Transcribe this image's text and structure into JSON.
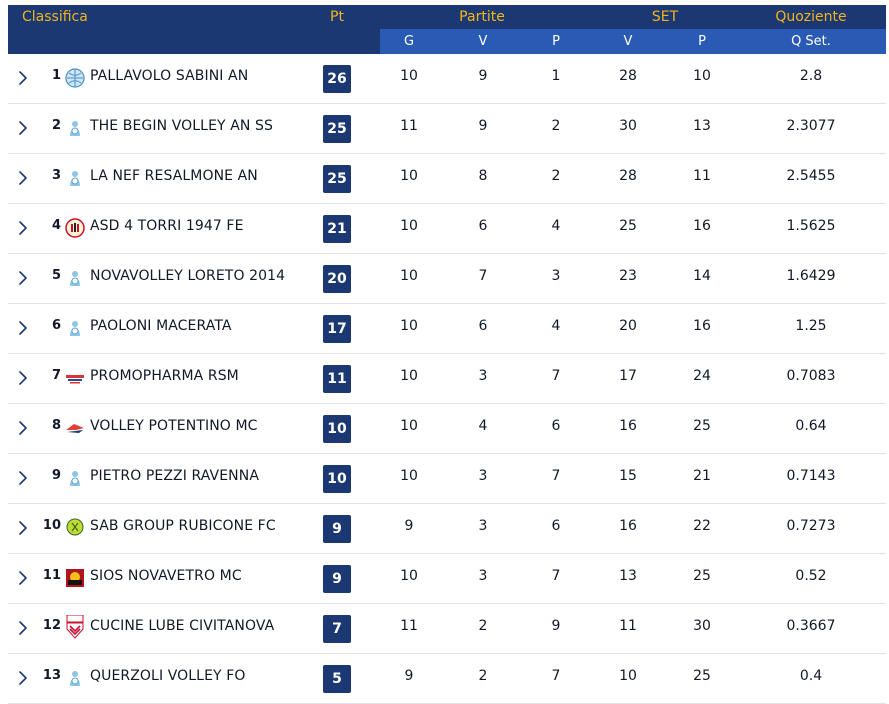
{
  "header": {
    "classifica": "Classifica",
    "pt": "Pt",
    "partite": "Partite",
    "set": "SET",
    "quoziente": "Quoziente",
    "sub_g": "G",
    "sub_v": "V",
    "sub_p": "P",
    "sub_set_v": "V",
    "sub_set_p": "P",
    "sub_qset": "Q Set."
  },
  "colors": {
    "header_bg": "#1b3873",
    "subheader_bg": "#2a5bb4",
    "header_accent": "#f3b51a",
    "points_badge": "#1b3873"
  },
  "rows": [
    {
      "pos": "1",
      "logo": "globe-volleyball-logo",
      "team": "PALLAVOLO SABINI AN",
      "pt": "26",
      "g": "10",
      "v": "9",
      "p": "1",
      "sv": "28",
      "sp": "10",
      "q": "2.8"
    },
    {
      "pos": "2",
      "logo": "generic-team-logo",
      "team": "THE BEGIN VOLLEY AN SS",
      "pt": "25",
      "g": "11",
      "v": "9",
      "p": "2",
      "sv": "30",
      "sp": "13",
      "q": "2.3077"
    },
    {
      "pos": "3",
      "logo": "generic-team-logo",
      "team": "LA NEF RESALMONE AN",
      "pt": "25",
      "g": "10",
      "v": "8",
      "p": "2",
      "sv": "28",
      "sp": "11",
      "q": "2.5455"
    },
    {
      "pos": "4",
      "logo": "towers-crest-logo",
      "team": "ASD 4 TORRI 1947 FE",
      "pt": "21",
      "g": "10",
      "v": "6",
      "p": "4",
      "sv": "25",
      "sp": "16",
      "q": "1.5625"
    },
    {
      "pos": "5",
      "logo": "generic-team-logo",
      "team": "NOVAVOLLEY LORETO 2014",
      "pt": "20",
      "g": "10",
      "v": "7",
      "p": "3",
      "sv": "23",
      "sp": "14",
      "q": "1.6429"
    },
    {
      "pos": "6",
      "logo": "generic-team-logo",
      "team": "PAOLONI MACERATA",
      "pt": "17",
      "g": "10",
      "v": "6",
      "p": "4",
      "sv": "20",
      "sp": "16",
      "q": "1.25"
    },
    {
      "pos": "7",
      "logo": "promopharma-logo",
      "team": "PROMOPHARMA RSM",
      "pt": "11",
      "g": "10",
      "v": "3",
      "p": "7",
      "sv": "17",
      "sp": "24",
      "q": "0.7083"
    },
    {
      "pos": "8",
      "logo": "potentino-logo",
      "team": "VOLLEY POTENTINO MC",
      "pt": "10",
      "g": "10",
      "v": "4",
      "p": "6",
      "sv": "16",
      "sp": "25",
      "q": "0.64"
    },
    {
      "pos": "9",
      "logo": "generic-team-logo",
      "team": "PIETRO PEZZI RAVENNA",
      "pt": "10",
      "g": "10",
      "v": "3",
      "p": "7",
      "sv": "15",
      "sp": "21",
      "q": "0.7143"
    },
    {
      "pos": "10",
      "logo": "sab-group-logo",
      "team": "SAB GROUP RUBICONE FC",
      "pt": "9",
      "g": "9",
      "v": "3",
      "p": "6",
      "sv": "16",
      "sp": "22",
      "q": "0.7273"
    },
    {
      "pos": "11",
      "logo": "sios-logo",
      "team": "SIOS NOVAVETRO MC",
      "pt": "9",
      "g": "10",
      "v": "3",
      "p": "7",
      "sv": "13",
      "sp": "25",
      "q": "0.52"
    },
    {
      "pos": "12",
      "logo": "lube-shield-logo",
      "team": "CUCINE LUBE CIVITANOVA",
      "pt": "7",
      "g": "11",
      "v": "2",
      "p": "9",
      "sv": "11",
      "sp": "30",
      "q": "0.3667"
    },
    {
      "pos": "13",
      "logo": "generic-team-logo",
      "team": "QUERZOLI VOLLEY FO",
      "pt": "5",
      "g": "9",
      "v": "2",
      "p": "7",
      "sv": "10",
      "sp": "25",
      "q": "0.4"
    }
  ]
}
